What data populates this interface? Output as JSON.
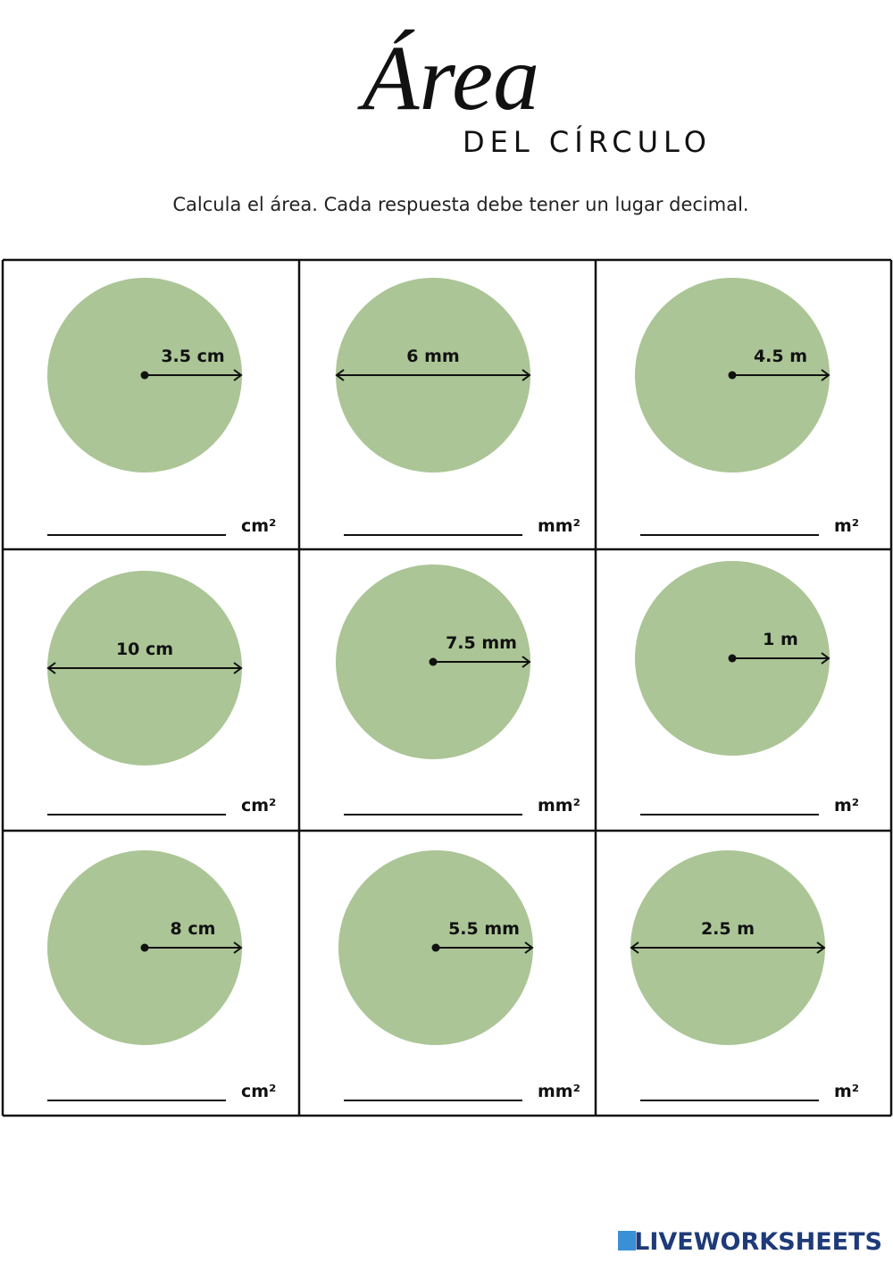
{
  "header": {
    "title": "Área",
    "subtitle": "DEL CÍRCULO",
    "instruction": "Calcula el área. Cada respuesta debe tener un lugar decimal."
  },
  "cells": [
    {
      "measure": "3.5 cm",
      "unit": "cm²"
    },
    {
      "measure": "6 mm",
      "unit": "mm²"
    },
    {
      "measure": "4.5 m",
      "unit": "m²"
    },
    {
      "measure": "10 cm",
      "unit": "cm²"
    },
    {
      "measure": "7.5 mm",
      "unit": "mm²"
    },
    {
      "measure": "1 m",
      "unit": "m²"
    },
    {
      "measure": "8 cm",
      "unit": "cm²"
    },
    {
      "measure": "5.5 mm",
      "unit": "mm²"
    },
    {
      "measure": "2.5 m",
      "unit": "m²"
    }
  ],
  "footer": {
    "brand": "LIVEWORKSHEETS"
  }
}
